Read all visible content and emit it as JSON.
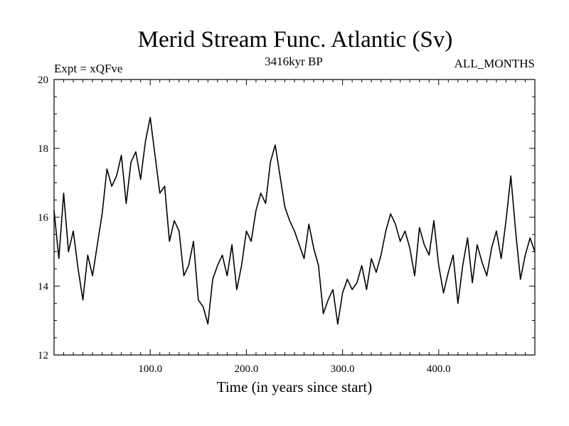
{
  "chart_data": {
    "type": "line",
    "title": "Merid Stream Func. Atlantic (Sv)",
    "subtitle_left": "Expt = xQFve",
    "subtitle_center": "3416kyr BP",
    "subtitle_right": "ALL_MONTHS",
    "xlabel": "Time (in years since start)",
    "ylabel": "",
    "xlim": [
      0,
      500
    ],
    "ylim": [
      12,
      20
    ],
    "x_ticks": [
      100,
      200,
      300,
      400
    ],
    "x_tick_labels": [
      "100.0",
      "200.0",
      "300.0",
      "400.0"
    ],
    "y_ticks": [
      12,
      14,
      16,
      18,
      20
    ],
    "y_tick_labels": [
      "12",
      "14",
      "16",
      "18",
      "20"
    ],
    "x_minor_step": 10,
    "y_minor_step": 0.5,
    "grid": false,
    "line_color": "#000000",
    "series": [
      {
        "name": "Merid Stream Func. Atlantic",
        "x": [
          0,
          5,
          10,
          15,
          20,
          25,
          30,
          35,
          40,
          45,
          50,
          55,
          60,
          65,
          70,
          75,
          80,
          85,
          90,
          95,
          100,
          105,
          110,
          115,
          120,
          125,
          130,
          135,
          140,
          145,
          150,
          155,
          160,
          165,
          170,
          175,
          180,
          185,
          190,
          195,
          200,
          205,
          210,
          215,
          220,
          225,
          230,
          235,
          240,
          245,
          250,
          255,
          260,
          265,
          270,
          275,
          280,
          285,
          290,
          295,
          300,
          305,
          310,
          315,
          320,
          325,
          330,
          335,
          340,
          345,
          350,
          355,
          360,
          365,
          370,
          375,
          380,
          385,
          390,
          395,
          400,
          405,
          410,
          415,
          420,
          425,
          430,
          435,
          440,
          445,
          450,
          455,
          460,
          465,
          470,
          475,
          480,
          485,
          490,
          495,
          500
        ],
        "values": [
          16.2,
          14.8,
          16.7,
          15.0,
          15.6,
          14.5,
          13.6,
          14.9,
          14.3,
          15.2,
          16.1,
          17.4,
          16.9,
          17.2,
          17.8,
          16.4,
          17.6,
          17.9,
          17.1,
          18.2,
          18.9,
          17.8,
          16.7,
          16.9,
          15.3,
          15.9,
          15.6,
          14.3,
          14.6,
          15.3,
          13.6,
          13.4,
          12.9,
          14.2,
          14.6,
          14.9,
          14.3,
          15.2,
          13.9,
          14.6,
          15.6,
          15.3,
          16.2,
          16.7,
          16.4,
          17.6,
          18.1,
          17.2,
          16.3,
          15.9,
          15.6,
          15.2,
          14.8,
          15.8,
          15.1,
          14.6,
          13.2,
          13.6,
          13.9,
          12.9,
          13.8,
          14.2,
          13.9,
          14.1,
          14.6,
          13.9,
          14.8,
          14.4,
          14.9,
          15.6,
          16.1,
          15.8,
          15.3,
          15.6,
          15.1,
          14.3,
          15.7,
          15.2,
          14.9,
          15.9,
          14.6,
          13.8,
          14.4,
          14.9,
          13.5,
          14.6,
          15.4,
          14.1,
          15.2,
          14.7,
          14.3,
          15.1,
          15.6,
          14.8,
          15.9,
          17.2,
          15.6,
          14.2,
          14.9,
          15.4,
          15.0
        ]
      }
    ]
  }
}
